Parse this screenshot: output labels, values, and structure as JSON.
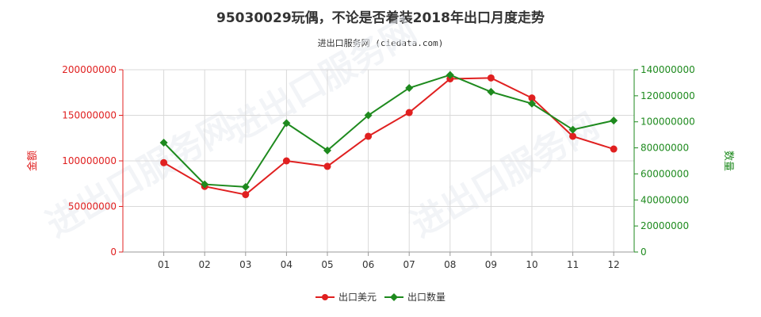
{
  "title": "95030029玩偶，不论是否着装2018年出口月度走势",
  "subtitle": "进出口服务网 (ciedata.com)",
  "watermark": "进出口服务网",
  "colors": {
    "value_series": "#e02020",
    "qty_series": "#1e8a1e",
    "grid": "#d9d9d9",
    "axis": "#999999"
  },
  "chart_data": {
    "type": "line",
    "categories": [
      "01",
      "02",
      "03",
      "04",
      "05",
      "06",
      "07",
      "08",
      "09",
      "10",
      "11",
      "12"
    ],
    "series": [
      {
        "name": "出口美元",
        "axis": "left",
        "values": [
          98000000,
          72000000,
          63000000,
          100000000,
          94000000,
          127000000,
          153000000,
          190000000,
          191000000,
          169000000,
          127000000,
          113000000
        ]
      },
      {
        "name": "出口数量",
        "axis": "right",
        "values": [
          84000000,
          52000000,
          50000000,
          99000000,
          78000000,
          105000000,
          126000000,
          136000000,
          123000000,
          114000000,
          94000000,
          101000000
        ]
      }
    ],
    "y_left": {
      "label": "金额",
      "min": 0,
      "max": 200000000,
      "ticks": [
        "0",
        "50000000",
        "100000000",
        "150000000",
        "200000000"
      ]
    },
    "y_right": {
      "label": "数量",
      "min": 0,
      "max": 140000000,
      "ticks": [
        "0",
        "20000000",
        "40000000",
        "60000000",
        "80000000",
        "100000000",
        "120000000",
        "140000000"
      ]
    },
    "grid": true,
    "legend": "bottom-center"
  }
}
